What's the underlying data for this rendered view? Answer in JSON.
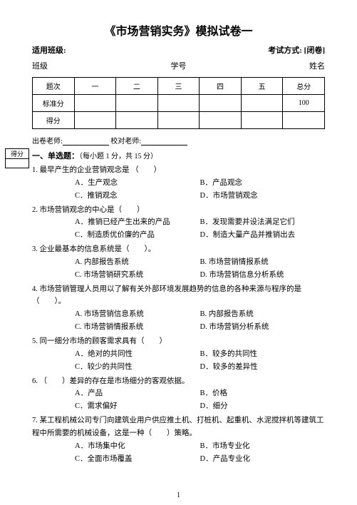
{
  "title": "《市场营销实务》模拟试卷一",
  "meta": {
    "class_label": "适用班级:",
    "exam_mode_label": "考试方式: [闭卷]"
  },
  "student": {
    "class_label": "班级",
    "id_label": "学号",
    "name_label": "姓名"
  },
  "score_table": {
    "headers": [
      "题次",
      "一",
      "二",
      "三",
      "四",
      "五",
      "总分"
    ],
    "rows": [
      {
        "label": "标准分",
        "total": "100"
      },
      {
        "label": "得分"
      }
    ]
  },
  "teacher": {
    "writer": "出卷老师:",
    "checker": "校对老师:"
  },
  "score_box_label": "得分",
  "section1": {
    "title": "一、单选题：",
    "note": "（每小题 1 分，共 15 分）"
  },
  "questions": [
    {
      "num": "1.",
      "stem": "最早产生的企业营销观念是 （　　）",
      "layout": "2col",
      "opts": [
        "A．生产观念",
        "B．产品观念",
        "C．推销观念",
        "D．市场营销观念"
      ]
    },
    {
      "num": "2.",
      "stem": "市场营销观念的中心是（　　）",
      "layout": "2col",
      "opts": [
        "A．推销已经产生出来的产品",
        "B．发现需要并设法满足它们",
        "C．制造质优价廉的产品",
        "D．制造大量产品并推销出去"
      ]
    },
    {
      "num": "3.",
      "stem": "企业最基本的信息系统是（　　）。",
      "layout": "2col",
      "opts": [
        "A. 内部报告系统",
        "B. 市场营销情报系统",
        "C. 市场营销研究系统",
        "D. 市场营销信息分析系统"
      ]
    },
    {
      "num": "4.",
      "stem": "市场营销管理人员用以了解有关外部环境发展趋势的信息的各种来源与程序的是（　　）。",
      "layout": "2col",
      "opts": [
        "A. 市场营销信息系统",
        "B. 内部报告系统",
        "C. 市场营销情报系统",
        "D. 市场营销分析系统"
      ]
    },
    {
      "num": "5.",
      "stem": "同一细分市场的顾客需求具有（　　）",
      "layout": "2col",
      "opts": [
        "A．绝对的共同性",
        "B．较多的共同性",
        "C．较少的共同性",
        "D．较多的差异性"
      ]
    },
    {
      "num": "6.",
      "stem": "（　　）差异的存在是市场细分的客观依据。",
      "layout": "2col",
      "opts": [
        "A．产品",
        "B．价格",
        "C．需求偏好",
        "D．细分"
      ]
    },
    {
      "num": "7.",
      "stem": "某工程机械公司专门向建筑业用户供应推土机、打桩机、起重机、水泥搅拌机等建筑工程中所需要的机械设备，这是一种（　　）策略。",
      "layout": "2col",
      "opts": [
        "A．市场集中化",
        "B．市场专业化",
        "C．全面市场覆盖",
        "D．产品专业化"
      ]
    }
  ],
  "page_num": "1"
}
